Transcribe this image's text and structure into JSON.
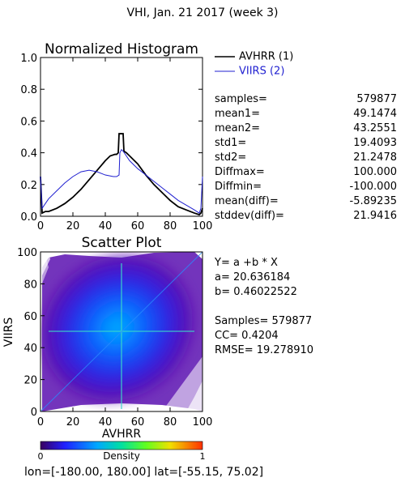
{
  "header": {
    "title": "VHI,  Jan. 21 2017 (week 3)"
  },
  "hist_stats": [
    {
      "label": "samples=",
      "value": "579877"
    },
    {
      "label": "mean1=",
      "value": "49.1474"
    },
    {
      "label": "mean2=",
      "value": "43.2551"
    },
    {
      "label": "std1=",
      "value": "19.4093"
    },
    {
      "label": "std2=",
      "value": "21.2478"
    },
    {
      "label": "Diffmax=",
      "value": "100.000"
    },
    {
      "label": "Diffmin=",
      "value": "-100.000"
    },
    {
      "label": "mean(diff)=",
      "value": "-5.89235"
    },
    {
      "label": "stddev(diff)=",
      "value": "21.9416"
    }
  ],
  "regression": {
    "eq": "Y= a +b * X",
    "a": "a= 20.636184",
    "b": "b= 0.46022522",
    "samples": "Samples= 579877",
    "cc": "CC=  0.4204",
    "rmse": "RMSE= 19.278910"
  },
  "footer": {
    "extent": "lon=[-180.00, 180.00] lat=[-55.15, 75.02]"
  },
  "colors": {
    "avhrr": "#000000",
    "viirs": "#1f1fd0"
  },
  "chart_data": [
    {
      "type": "line",
      "title": "Normalized Histogram",
      "xlim": [
        0,
        100
      ],
      "ylim": [
        0,
        1.0
      ],
      "xticks": [
        "0",
        "20",
        "40",
        "60",
        "80",
        "100"
      ],
      "yticks": [
        "0.0",
        "0.2",
        "0.4",
        "0.6",
        "0.8",
        "1.0"
      ],
      "legend_position": "top-right",
      "series": [
        {
          "name": "AVHRR (1)",
          "color": "#000000",
          "x": [
            0,
            1,
            3,
            5,
            10,
            15,
            20,
            25,
            30,
            35,
            40,
            43,
            46,
            47,
            48,
            48.5,
            51,
            51.5,
            53,
            55,
            60,
            65,
            70,
            75,
            80,
            85,
            90,
            95,
            98,
            99,
            100
          ],
          "y": [
            0.25,
            0.02,
            0.03,
            0.03,
            0.05,
            0.08,
            0.12,
            0.17,
            0.23,
            0.29,
            0.35,
            0.38,
            0.39,
            0.39,
            0.4,
            0.52,
            0.52,
            0.41,
            0.4,
            0.38,
            0.33,
            0.26,
            0.2,
            0.15,
            0.1,
            0.06,
            0.04,
            0.02,
            0.01,
            0.02,
            0.05
          ]
        },
        {
          "name": "VIIRS (2)",
          "color": "#1f1fd0",
          "x": [
            0,
            1,
            3,
            5,
            10,
            15,
            20,
            25,
            30,
            35,
            40,
            45,
            47,
            48.5,
            49,
            50,
            51,
            55,
            60,
            65,
            70,
            75,
            80,
            85,
            90,
            95,
            98,
            99,
            100
          ],
          "y": [
            0.25,
            0.05,
            0.08,
            0.11,
            0.16,
            0.21,
            0.25,
            0.28,
            0.29,
            0.28,
            0.26,
            0.25,
            0.25,
            0.26,
            0.4,
            0.42,
            0.41,
            0.35,
            0.3,
            0.26,
            0.22,
            0.18,
            0.14,
            0.1,
            0.07,
            0.04,
            0.02,
            0.05,
            0.25
          ]
        }
      ]
    },
    {
      "type": "heatmap",
      "title": "Scatter Plot",
      "xlabel": "AVHRR",
      "ylabel": "VIIRS",
      "xlim": [
        0,
        100
      ],
      "ylim": [
        0,
        100
      ],
      "xticks": [
        "0",
        "20",
        "40",
        "60",
        "80",
        "100"
      ],
      "yticks": [
        "0",
        "20",
        "40",
        "60",
        "80",
        "100"
      ],
      "density_center": [
        45,
        45
      ],
      "regression_line": {
        "a": 20.636184,
        "b": 0.46022522
      },
      "colorbar": {
        "label": "Density",
        "min": "0",
        "max": "1"
      }
    }
  ]
}
